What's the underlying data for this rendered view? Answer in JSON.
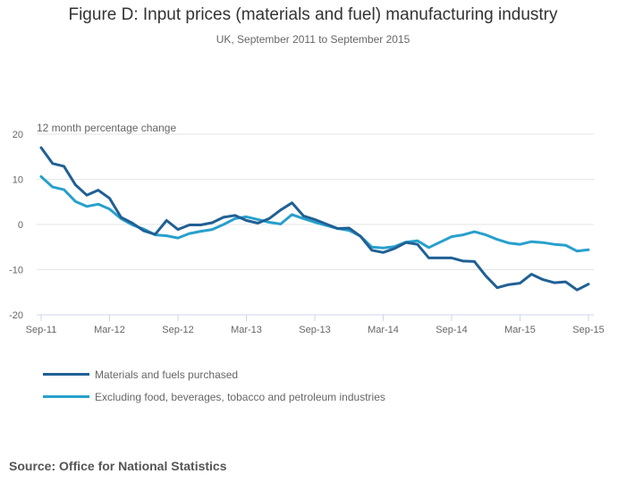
{
  "chart_data": {
    "type": "line",
    "title": "Figure D: Input prices (materials and fuel) manufacturing industry",
    "subtitle": "UK, September 2011 to September 2015",
    "ylabel": "12 month percentage change",
    "xlabel": "",
    "ylim": [
      -20,
      20
    ],
    "yticks": [
      20,
      10,
      0,
      -10,
      -20
    ],
    "grid": true,
    "legend_position": "bottom-left",
    "x": [
      "Sep-11",
      "Oct-11",
      "Nov-11",
      "Dec-11",
      "Jan-12",
      "Feb-12",
      "Mar-12",
      "Apr-12",
      "May-12",
      "Jun-12",
      "Jul-12",
      "Aug-12",
      "Sep-12",
      "Oct-12",
      "Nov-12",
      "Dec-12",
      "Jan-13",
      "Feb-13",
      "Mar-13",
      "Apr-13",
      "May-13",
      "Jun-13",
      "Jul-13",
      "Aug-13",
      "Sep-13",
      "Oct-13",
      "Nov-13",
      "Dec-13",
      "Jan-14",
      "Feb-14",
      "Mar-14",
      "Apr-14",
      "May-14",
      "Jun-14",
      "Jul-14",
      "Aug-14",
      "Sep-14",
      "Oct-14",
      "Nov-14",
      "Dec-14",
      "Jan-15",
      "Feb-15",
      "Mar-15",
      "Apr-15",
      "May-15",
      "Jun-15",
      "Jul-15",
      "Aug-15",
      "Sep-15"
    ],
    "xtick_labels": [
      "Sep-11",
      "Mar-12",
      "Sep-12",
      "Mar-13",
      "Sep-13",
      "Mar-14",
      "Sep-14",
      "Mar-15",
      "Sep-15"
    ],
    "series": [
      {
        "name": "Materials and fuels purchased",
        "color": "#206095",
        "values": [
          17.0,
          13.5,
          12.9,
          8.8,
          6.5,
          7.6,
          5.8,
          1.6,
          0.3,
          -1.4,
          -2.2,
          0.9,
          -1.1,
          -0.1,
          -0.1,
          0.4,
          1.6,
          2.0,
          0.9,
          0.3,
          1.3,
          3.2,
          4.8,
          1.9,
          1.1,
          0.1,
          -0.9,
          -0.8,
          -2.6,
          -5.7,
          -6.2,
          -5.3,
          -4.0,
          -4.4,
          -7.4,
          -7.4,
          -7.4,
          -8.1,
          -8.2,
          -11.4,
          -14.0,
          -13.3,
          -13.0,
          -11.0,
          -12.2,
          -12.9,
          -12.7,
          -14.5,
          -13.2
        ]
      },
      {
        "name": "Excluding food, beverages, tobacco and petroleum industries",
        "color": "#27a0cc",
        "values": [
          10.6,
          8.3,
          7.7,
          5.1,
          4.0,
          4.5,
          3.4,
          1.3,
          -0.1,
          -1.0,
          -2.3,
          -2.5,
          -3.0,
          -2.0,
          -1.5,
          -1.1,
          0.0,
          1.3,
          1.7,
          1.1,
          0.5,
          0.1,
          2.2,
          1.3,
          0.5,
          -0.2,
          -0.9,
          -1.3,
          -2.6,
          -5.0,
          -5.2,
          -4.9,
          -3.9,
          -3.6,
          -5.1,
          -3.9,
          -2.7,
          -2.3,
          -1.6,
          -2.3,
          -3.3,
          -4.1,
          -4.4,
          -3.8,
          -4.0,
          -4.4,
          -4.6,
          -5.9,
          -5.6
        ]
      }
    ]
  },
  "source": "Source: Office for National Statistics"
}
